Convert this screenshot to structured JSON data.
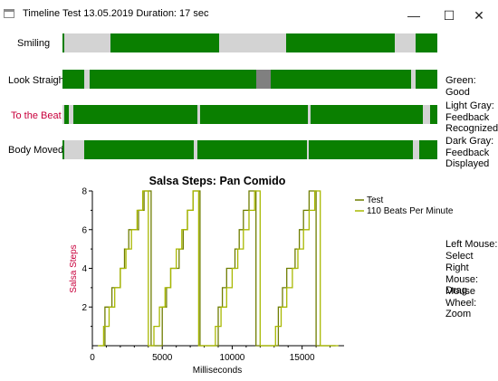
{
  "window": {
    "title": "Timeline Test 13.05.2019 Duration: 17 sec",
    "minimize_glyph": "—",
    "maximize_glyph": "☐",
    "close_glyph": "✕"
  },
  "colors": {
    "good": "#0a7f00",
    "feedback_recognized": "#d3d3d3",
    "feedback_displayed": "#808080",
    "label_default": "#000000",
    "label_highlight": "#c8003c",
    "chart_line": "#8a9a00"
  },
  "timeline": {
    "rows": [
      {
        "label": "Smiling",
        "highlight": false,
        "segments": [
          {
            "from": 0.0,
            "to": 0.005,
            "state": "good"
          },
          {
            "from": 0.005,
            "to": 0.128,
            "state": "light"
          },
          {
            "from": 0.128,
            "to": 0.418,
            "state": "good"
          },
          {
            "from": 0.418,
            "to": 0.596,
            "state": "light"
          },
          {
            "from": 0.596,
            "to": 0.886,
            "state": "good"
          },
          {
            "from": 0.886,
            "to": 0.942,
            "state": "light"
          },
          {
            "from": 0.942,
            "to": 1.0,
            "state": "good"
          }
        ]
      },
      {
        "label": "Look Straight",
        "highlight": false,
        "segments": [
          {
            "from": 0.0,
            "to": 0.058,
            "state": "good"
          },
          {
            "from": 0.058,
            "to": 0.072,
            "state": "light"
          },
          {
            "from": 0.072,
            "to": 0.518,
            "state": "good"
          },
          {
            "from": 0.518,
            "to": 0.556,
            "state": "dark"
          },
          {
            "from": 0.556,
            "to": 0.93,
            "state": "good"
          },
          {
            "from": 0.93,
            "to": 0.942,
            "state": "light"
          },
          {
            "from": 0.942,
            "to": 1.0,
            "state": "good"
          }
        ]
      },
      {
        "label": "To the Beat",
        "highlight": true,
        "segments": [
          {
            "from": 0.0,
            "to": 0.004,
            "state": "light"
          },
          {
            "from": 0.004,
            "to": 0.017,
            "state": "good"
          },
          {
            "from": 0.017,
            "to": 0.03,
            "state": "light"
          },
          {
            "from": 0.03,
            "to": 0.36,
            "state": "good"
          },
          {
            "from": 0.36,
            "to": 0.368,
            "state": "light"
          },
          {
            "from": 0.368,
            "to": 0.655,
            "state": "good"
          },
          {
            "from": 0.655,
            "to": 0.663,
            "state": "light"
          },
          {
            "from": 0.663,
            "to": 0.658,
            "state": "good"
          },
          {
            "from": 0.663,
            "to": 0.658,
            "state": "good"
          },
          {
            "from": 0.663,
            "to": 0.656,
            "state": "good"
          },
          {
            "from": 0.663,
            "to": 0.66,
            "state": "good"
          },
          {
            "from": 0.663,
            "to": 0.667,
            "state": "good"
          },
          {
            "from": 0.667,
            "to": 0.66,
            "state": "good"
          },
          {
            "from": 0.663,
            "to": 0.662,
            "state": "good"
          },
          {
            "from": 0.663,
            "to": 0.661,
            "state": "good"
          },
          {
            "from": 0.663,
            "to": 0.659,
            "state": "good"
          },
          {
            "from": 0.663,
            "to": 0.657,
            "state": "good"
          },
          {
            "from": 0.663,
            "to": 0.664,
            "state": "good"
          },
          {
            "from": 0.664,
            "to": 0.665,
            "state": "good"
          },
          {
            "from": 0.665,
            "to": 0.663,
            "state": "good"
          },
          {
            "from": 0.663,
            "to": 0.668,
            "state": "good"
          },
          {
            "from": 0.668,
            "to": 0.666,
            "state": "good"
          },
          {
            "from": 0.663,
            "to": 0.656,
            "state": "good"
          },
          {
            "from": 0.663,
            "to": 0.962,
            "state": "good"
          },
          {
            "from": 0.962,
            "to": 0.98,
            "state": "light"
          },
          {
            "from": 0.98,
            "to": 1.0,
            "state": "good"
          }
        ]
      },
      {
        "label": "Body Moved",
        "highlight": false,
        "segments": [
          {
            "from": 0.0,
            "to": 0.004,
            "state": "good"
          },
          {
            "from": 0.004,
            "to": 0.017,
            "state": "light"
          },
          {
            "from": 0.017,
            "to": 0.058,
            "state": "light"
          },
          {
            "from": 0.058,
            "to": 0.35,
            "state": "good"
          },
          {
            "from": 0.35,
            "to": 0.36,
            "state": "light"
          },
          {
            "from": 0.36,
            "to": 0.652,
            "state": "good"
          },
          {
            "from": 0.652,
            "to": 0.656,
            "state": "light"
          },
          {
            "from": 0.656,
            "to": 0.935,
            "state": "good"
          },
          {
            "from": 0.935,
            "to": 0.952,
            "state": "light"
          },
          {
            "from": 0.952,
            "to": 1.0,
            "state": "good"
          }
        ]
      }
    ]
  },
  "legend_side": {
    "good": "Green: Good",
    "light_gray": [
      "Light Gray:",
      "Feedback",
      "Recognized"
    ],
    "dark_gray": [
      "Dark Gray:",
      "Feedback",
      "Displayed"
    ]
  },
  "mouse_help": {
    "left": [
      "Left Mouse:",
      "Select"
    ],
    "right": [
      "Right Mouse:",
      "Drag"
    ],
    "wheel": [
      "Mouse Wheel:",
      "Zoom"
    ]
  },
  "chart_data": {
    "type": "line",
    "title": "Salsa Steps: Pan Comido",
    "xlabel": "Milliseconds",
    "ylabel": "Salsa Steps",
    "xlim": [
      0,
      18000
    ],
    "ylim": [
      0,
      8
    ],
    "xticks": [
      0,
      5000,
      10000,
      15000
    ],
    "yticks": [
      2,
      4,
      6,
      8
    ],
    "grid": false,
    "legend_position": "top-right outside",
    "series": [
      {
        "name": "Test",
        "x": [
          500,
          900,
          900,
          1100,
          1100,
          1400,
          1400,
          1700,
          1700,
          2000,
          2000,
          2300,
          2300,
          2600,
          2600,
          2900,
          2900,
          3300,
          3300,
          3700,
          3700,
          4200,
          4200,
          4600,
          4600,
          5000,
          5000,
          5300,
          5300,
          5600,
          5600,
          5900,
          5900,
          6200,
          6200,
          6500,
          6500,
          6800,
          6800,
          7200,
          7200,
          7700,
          7700,
          8500,
          8500,
          9000,
          9000,
          9300,
          9300,
          9600,
          9600,
          9900,
          9900,
          10200,
          10200,
          10500,
          10500,
          10800,
          10800,
          11200,
          11200,
          11700,
          11700,
          12900,
          12900,
          13300,
          13300,
          13600,
          13600,
          13900,
          13900,
          14200,
          14200,
          14500,
          14500,
          14800,
          14800,
          15100,
          15100,
          15500,
          15500,
          16000,
          16000,
          17400
        ],
        "y": [
          0,
          0,
          2,
          2,
          2,
          2,
          3,
          3,
          3,
          3,
          4,
          4,
          5,
          5,
          6,
          6,
          6,
          6,
          7,
          7,
          8,
          8,
          0,
          0,
          0,
          0,
          2,
          2,
          3,
          3,
          4,
          4,
          4,
          4,
          5,
          5,
          6,
          6,
          7,
          7,
          8,
          8,
          0,
          0,
          0,
          0,
          2,
          2,
          3,
          3,
          4,
          4,
          4,
          4,
          5,
          5,
          6,
          6,
          7,
          7,
          8,
          8,
          0,
          0,
          0,
          0,
          2,
          2,
          3,
          3,
          4,
          4,
          4,
          4,
          5,
          5,
          6,
          6,
          7,
          7,
          8,
          8,
          0,
          0
        ]
      },
      {
        "name": "110 Beats Per Minute",
        "x": [
          400,
          800,
          800,
          1200,
          1200,
          1600,
          1600,
          2000,
          2000,
          2400,
          2400,
          2800,
          2800,
          3200,
          3200,
          3600,
          3600,
          4000,
          4000,
          4400,
          4400,
          4800,
          4800,
          5200,
          5200,
          5600,
          5600,
          6000,
          6000,
          6400,
          6400,
          6800,
          6800,
          7200,
          7200,
          7600,
          7600,
          8000,
          8000,
          8800,
          8800,
          9200,
          9200,
          9600,
          9600,
          10000,
          10000,
          10400,
          10400,
          10800,
          10800,
          11200,
          11200,
          11600,
          11600,
          12000,
          12000,
          13100,
          13100,
          13500,
          13500,
          13900,
          13900,
          14300,
          14300,
          14700,
          14700,
          15100,
          15100,
          15500,
          15500,
          15900,
          15900,
          16300,
          16300,
          17600
        ],
        "y": [
          0,
          0,
          1,
          1,
          2,
          2,
          3,
          3,
          4,
          4,
          5,
          5,
          6,
          6,
          7,
          7,
          8,
          8,
          0,
          0,
          1,
          1,
          2,
          2,
          3,
          3,
          4,
          4,
          5,
          5,
          6,
          6,
          7,
          7,
          8,
          8,
          0,
          0,
          0,
          0,
          1,
          1,
          2,
          2,
          3,
          3,
          4,
          4,
          5,
          5,
          6,
          6,
          7,
          7,
          8,
          8,
          0,
          0,
          1,
          1,
          2,
          2,
          3,
          3,
          4,
          4,
          5,
          5,
          6,
          6,
          7,
          7,
          8,
          8,
          0,
          0
        ]
      }
    ]
  }
}
